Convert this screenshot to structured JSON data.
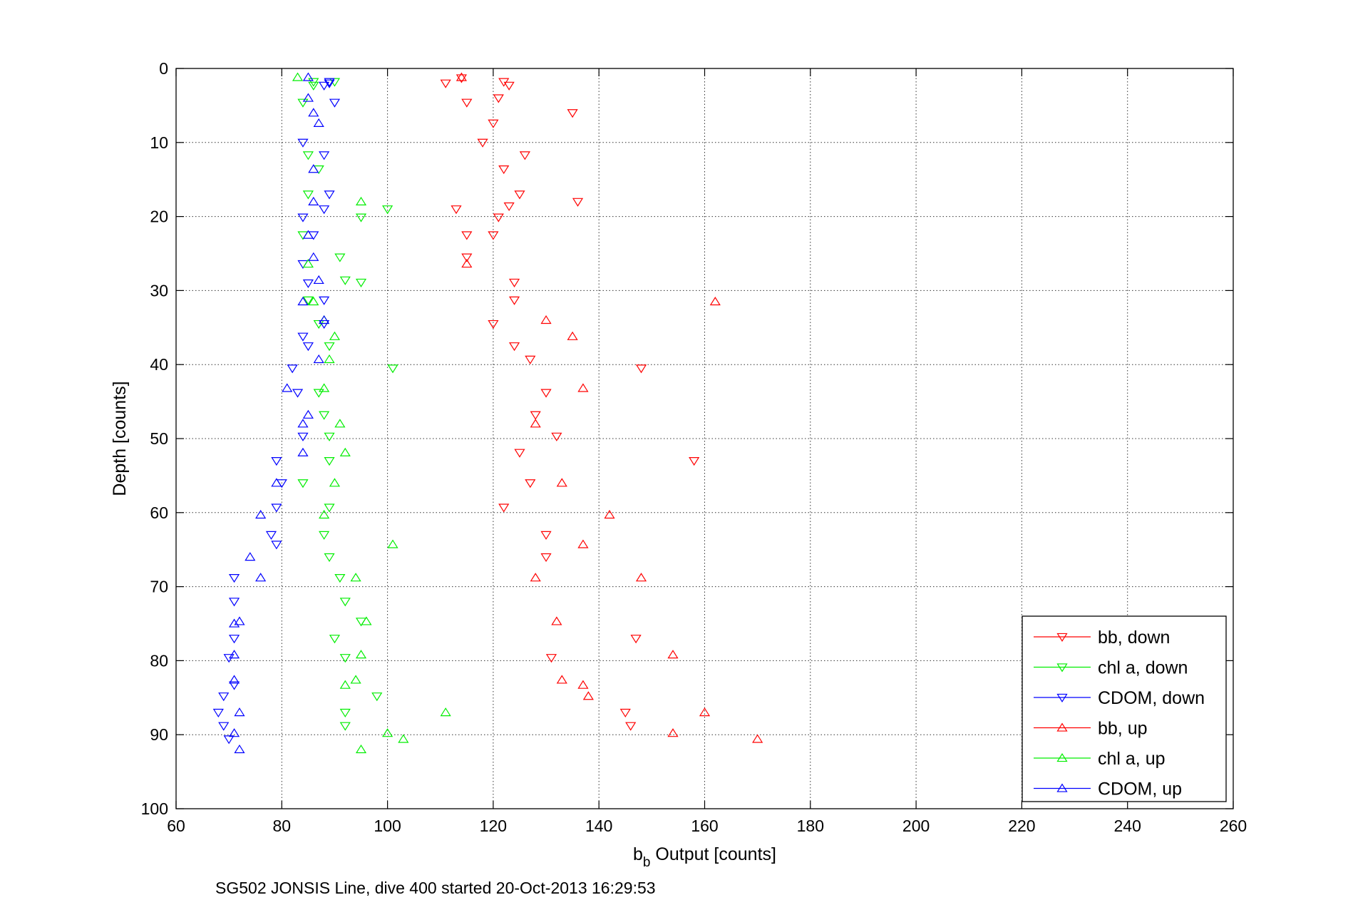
{
  "chart_data": {
    "type": "scatter",
    "xlabel": {
      "main": "b",
      "sub": "b",
      "rest": " Output [counts]"
    },
    "ylabel": "Depth [counts]",
    "caption": "SG502 JONSIS Line, dive 400 started 20-Oct-2013 16:29:53",
    "xlim": [
      60,
      260
    ],
    "ylim": [
      0,
      100
    ],
    "y_reversed": true,
    "xticks": [
      60,
      80,
      100,
      120,
      140,
      160,
      180,
      200,
      220,
      240,
      260
    ],
    "yticks": [
      0,
      10,
      20,
      30,
      40,
      50,
      60,
      70,
      80,
      90,
      100
    ],
    "grid": true,
    "legend_position": "bottom-right",
    "series": [
      {
        "name": "bb, down",
        "color": "#ff0000",
        "marker": "triangle-down",
        "points": [
          [
            114,
            1.3
          ],
          [
            111,
            2
          ],
          [
            122,
            1.8
          ],
          [
            123,
            2.3
          ],
          [
            121,
            4
          ],
          [
            115,
            4.6
          ],
          [
            135,
            6
          ],
          [
            120,
            7.4
          ],
          [
            118,
            10
          ],
          [
            126,
            11.7
          ],
          [
            122,
            13.6
          ],
          [
            125,
            17
          ],
          [
            136,
            18
          ],
          [
            123,
            18.6
          ],
          [
            113,
            19
          ],
          [
            121,
            20.1
          ],
          [
            115,
            22.5
          ],
          [
            120,
            22.5
          ],
          [
            115,
            25.5
          ],
          [
            124,
            28.9
          ],
          [
            124,
            31.3
          ],
          [
            120,
            34.5
          ],
          [
            124,
            37.5
          ],
          [
            127,
            39.3
          ],
          [
            148,
            40.5
          ],
          [
            130,
            43.8
          ],
          [
            128,
            46.8
          ],
          [
            132,
            49.7
          ],
          [
            125,
            51.9
          ],
          [
            158,
            53
          ],
          [
            127,
            56
          ],
          [
            122,
            59.3
          ],
          [
            130,
            63
          ],
          [
            130,
            66
          ],
          [
            147,
            77
          ],
          [
            131,
            79.6
          ],
          [
            145,
            87
          ],
          [
            146,
            88.8
          ]
        ]
      },
      {
        "name": "chl a, down",
        "color": "#00ee00",
        "marker": "triangle-down",
        "points": [
          [
            86,
            1.8
          ],
          [
            86,
            2.3
          ],
          [
            90,
            1.8
          ],
          [
            84,
            4.6
          ],
          [
            85,
            11.7
          ],
          [
            87,
            13.6
          ],
          [
            85,
            17
          ],
          [
            100,
            19
          ],
          [
            95,
            20.1
          ],
          [
            84,
            22.5
          ],
          [
            91,
            25.5
          ],
          [
            92,
            28.6
          ],
          [
            95,
            28.9
          ],
          [
            85,
            31.3
          ],
          [
            87,
            34.5
          ],
          [
            89,
            37.5
          ],
          [
            101,
            40.5
          ],
          [
            87,
            43.8
          ],
          [
            88,
            46.8
          ],
          [
            89,
            49.7
          ],
          [
            89,
            53
          ],
          [
            84,
            56
          ],
          [
            89,
            59.3
          ],
          [
            88,
            63
          ],
          [
            89,
            66
          ],
          [
            91,
            68.8
          ],
          [
            92,
            72
          ],
          [
            95,
            74.7
          ],
          [
            90,
            77
          ],
          [
            92,
            79.6
          ],
          [
            98,
            84.8
          ],
          [
            92,
            87
          ],
          [
            92,
            88.8
          ]
        ]
      },
      {
        "name": "CDOM, down",
        "color": "#0000ff",
        "marker": "triangle-down",
        "points": [
          [
            89,
            1.8
          ],
          [
            89,
            2
          ],
          [
            88,
            2.3
          ],
          [
            90,
            4.6
          ],
          [
            84,
            10
          ],
          [
            88,
            11.7
          ],
          [
            89,
            17
          ],
          [
            88,
            19
          ],
          [
            84,
            20.1
          ],
          [
            86,
            22.5
          ],
          [
            84,
            26.4
          ],
          [
            85,
            29
          ],
          [
            88,
            31.3
          ],
          [
            88,
            34.5
          ],
          [
            84,
            36.2
          ],
          [
            85,
            37.5
          ],
          [
            82,
            40.5
          ],
          [
            83,
            43.8
          ],
          [
            84,
            49.7
          ],
          [
            79,
            53
          ],
          [
            80,
            56
          ],
          [
            79,
            59.3
          ],
          [
            78,
            63
          ],
          [
            79,
            64.3
          ],
          [
            71,
            68.8
          ],
          [
            71,
            72
          ],
          [
            71,
            77
          ],
          [
            70,
            79.6
          ],
          [
            71,
            83.3
          ],
          [
            69,
            84.8
          ],
          [
            68,
            87
          ],
          [
            69,
            88.8
          ],
          [
            70,
            90.6
          ]
        ]
      },
      {
        "name": "bb, up",
        "color": "#ff0000",
        "marker": "triangle-up",
        "points": [
          [
            114,
            1.2
          ],
          [
            115,
            26.4
          ],
          [
            162,
            31.5
          ],
          [
            130,
            34
          ],
          [
            135,
            36.2
          ],
          [
            137,
            43.2
          ],
          [
            128,
            48
          ],
          [
            133,
            56
          ],
          [
            142,
            60.3
          ],
          [
            137,
            64.3
          ],
          [
            148,
            68.8
          ],
          [
            128,
            68.8
          ],
          [
            132,
            74.7
          ],
          [
            154,
            79.2
          ],
          [
            133,
            82.6
          ],
          [
            137,
            83.3
          ],
          [
            138,
            84.8
          ],
          [
            160,
            87
          ],
          [
            154,
            89.8
          ],
          [
            170,
            90.6
          ]
        ]
      },
      {
        "name": "chl a, up",
        "color": "#00ee00",
        "marker": "triangle-up",
        "points": [
          [
            83,
            1.2
          ],
          [
            95,
            18
          ],
          [
            85,
            26.4
          ],
          [
            86,
            31.5
          ],
          [
            88,
            34
          ],
          [
            90,
            36.2
          ],
          [
            89,
            39.3
          ],
          [
            88,
            43.2
          ],
          [
            91,
            48
          ],
          [
            92,
            51.9
          ],
          [
            90,
            56
          ],
          [
            88,
            60.3
          ],
          [
            101,
            64.3
          ],
          [
            94,
            68.8
          ],
          [
            96,
            74.7
          ],
          [
            95,
            79.2
          ],
          [
            94,
            82.6
          ],
          [
            92,
            83.3
          ],
          [
            111,
            87
          ],
          [
            100,
            89.8
          ],
          [
            103,
            90.6
          ],
          [
            95,
            92
          ]
        ]
      },
      {
        "name": "CDOM, up",
        "color": "#0000ff",
        "marker": "triangle-up",
        "points": [
          [
            85,
            1.2
          ],
          [
            85,
            4
          ],
          [
            86,
            6
          ],
          [
            87,
            7.4
          ],
          [
            86,
            13.6
          ],
          [
            86,
            18
          ],
          [
            85,
            22.5
          ],
          [
            86,
            25.5
          ],
          [
            87,
            28.6
          ],
          [
            84,
            31.5
          ],
          [
            88,
            34
          ],
          [
            87,
            39.3
          ],
          [
            81,
            43.2
          ],
          [
            85,
            46.8
          ],
          [
            84,
            48
          ],
          [
            84,
            51.9
          ],
          [
            79,
            56
          ],
          [
            76,
            60.3
          ],
          [
            74,
            66
          ],
          [
            76,
            68.8
          ],
          [
            72,
            74.7
          ],
          [
            71,
            75
          ],
          [
            71,
            79.2
          ],
          [
            71,
            82.6
          ],
          [
            72,
            87
          ],
          [
            71,
            89.8
          ],
          [
            72,
            92
          ]
        ]
      }
    ]
  }
}
